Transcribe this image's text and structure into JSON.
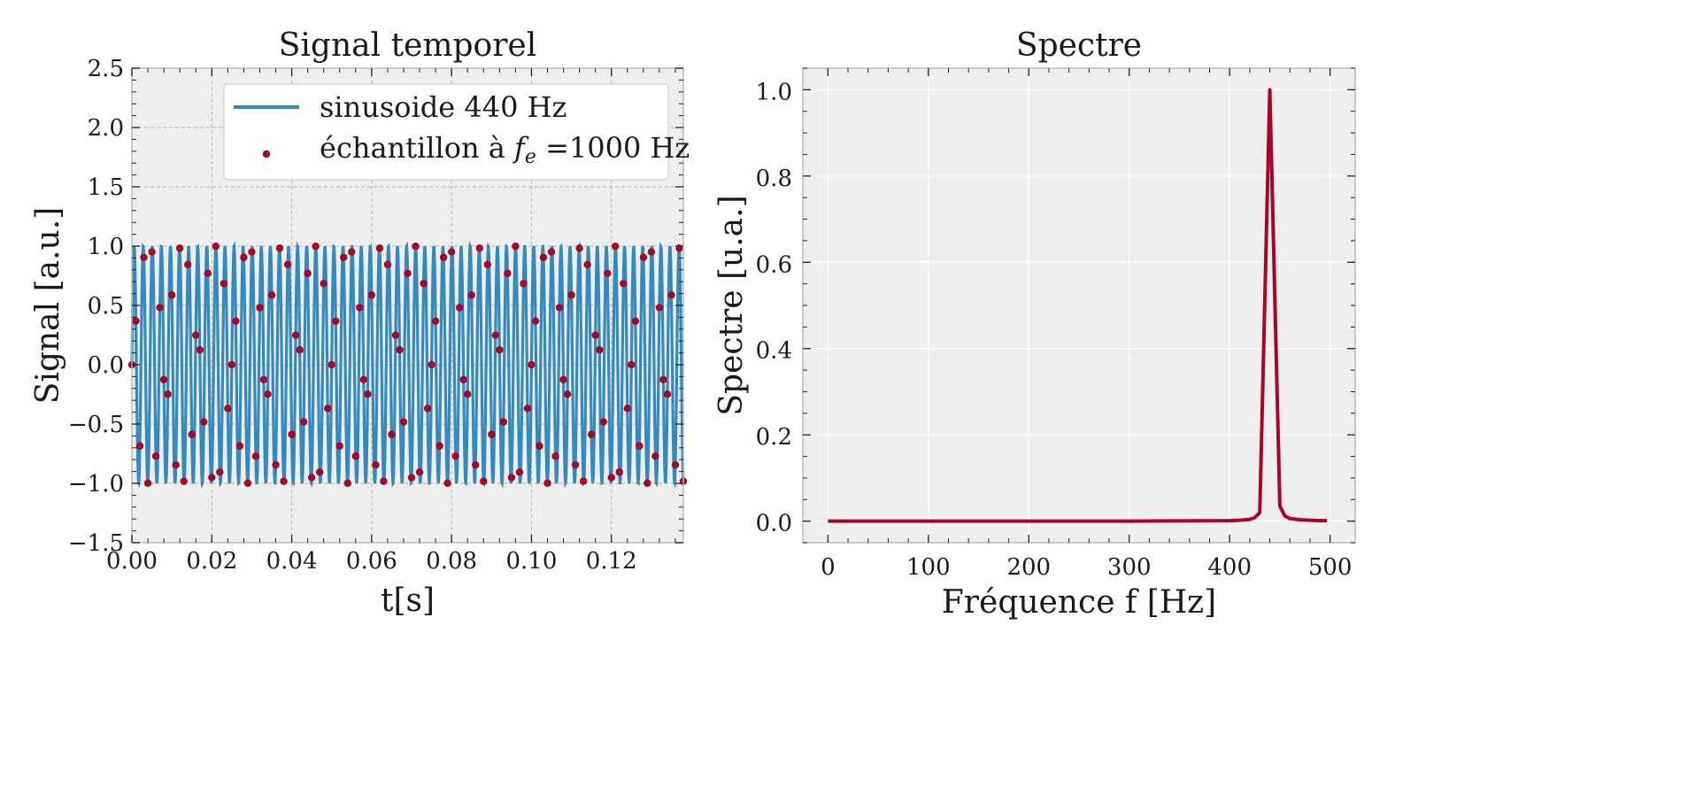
{
  "chart_data": [
    {
      "type": "line",
      "title": "Signal temporel",
      "xlabel": "t[s]",
      "ylabel": "Signal [a.u.]",
      "xlim": [
        0,
        0.138
      ],
      "ylim": [
        -1.5,
        2.5
      ],
      "grid": true,
      "legend_position": "top-right",
      "x_ticks": [
        "0.00",
        "0.02",
        "0.04",
        "0.06",
        "0.08",
        "0.10",
        "0.12"
      ],
      "y_ticks": [
        "−1.5",
        "−1.0",
        "−0.5",
        "0.0",
        "0.5",
        "1.0",
        "1.5",
        "2.0",
        "2.5"
      ],
      "series": [
        {
          "name": "sinusoide 440 Hz",
          "kind": "line",
          "function": "sin(2*pi*440*t)",
          "frequency_hz": 440,
          "amplitude": 1.0,
          "color": "#348ABD"
        },
        {
          "name_prefix": "échantillon à ",
          "name_symbol": "f",
          "name_subscript": "e",
          "name_suffix": " =1000 Hz",
          "kind": "scatter",
          "sample_rate_hz": 1000,
          "color": "#A60628"
        }
      ]
    },
    {
      "type": "line",
      "title": "Spectre",
      "xlabel": "Fréquence f [Hz]",
      "ylabel": "Spectre [u.a.]",
      "xlim": [
        -25,
        525
      ],
      "ylim": [
        -0.05,
        1.05
      ],
      "grid": true,
      "x_ticks": [
        "0",
        "100",
        "200",
        "300",
        "400",
        "500"
      ],
      "y_ticks": [
        "0.0",
        "0.2",
        "0.4",
        "0.6",
        "0.8",
        "1.0"
      ],
      "series": [
        {
          "color": "#A60628",
          "x": [
            0,
            100,
            200,
            300,
            400,
            410,
            420,
            425,
            430,
            440,
            450,
            455,
            460,
            470,
            480,
            490,
            497
          ],
          "y": [
            0,
            0,
            0,
            0,
            0.001,
            0.002,
            0.004,
            0.008,
            0.02,
            1.0,
            0.035,
            0.012,
            0.006,
            0.003,
            0.002,
            0.001,
            0.001
          ]
        }
      ]
    }
  ]
}
